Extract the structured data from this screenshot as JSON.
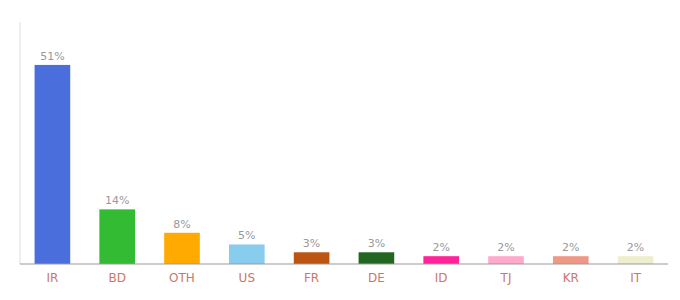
{
  "chart_data": {
    "type": "bar",
    "categories": [
      "IR",
      "BD",
      "OTH",
      "US",
      "FR",
      "DE",
      "ID",
      "TJ",
      "KR",
      "IT"
    ],
    "values": [
      51,
      14,
      8,
      5,
      3,
      3,
      2,
      2,
      2,
      2
    ],
    "value_labels": [
      "51%",
      "14%",
      "8%",
      "5%",
      "3%",
      "3%",
      "2%",
      "2%",
      "2%",
      "2%"
    ],
    "colors": [
      "#4a6fdc",
      "#33bb33",
      "#ffaa00",
      "#88ccee",
      "#bb5511",
      "#226622",
      "#ff2299",
      "#ffaacc",
      "#ee9988",
      "#eeeecc"
    ],
    "ylim": [
      0,
      62
    ],
    "grid": false,
    "data_labels": true,
    "tick_labels": "x"
  }
}
